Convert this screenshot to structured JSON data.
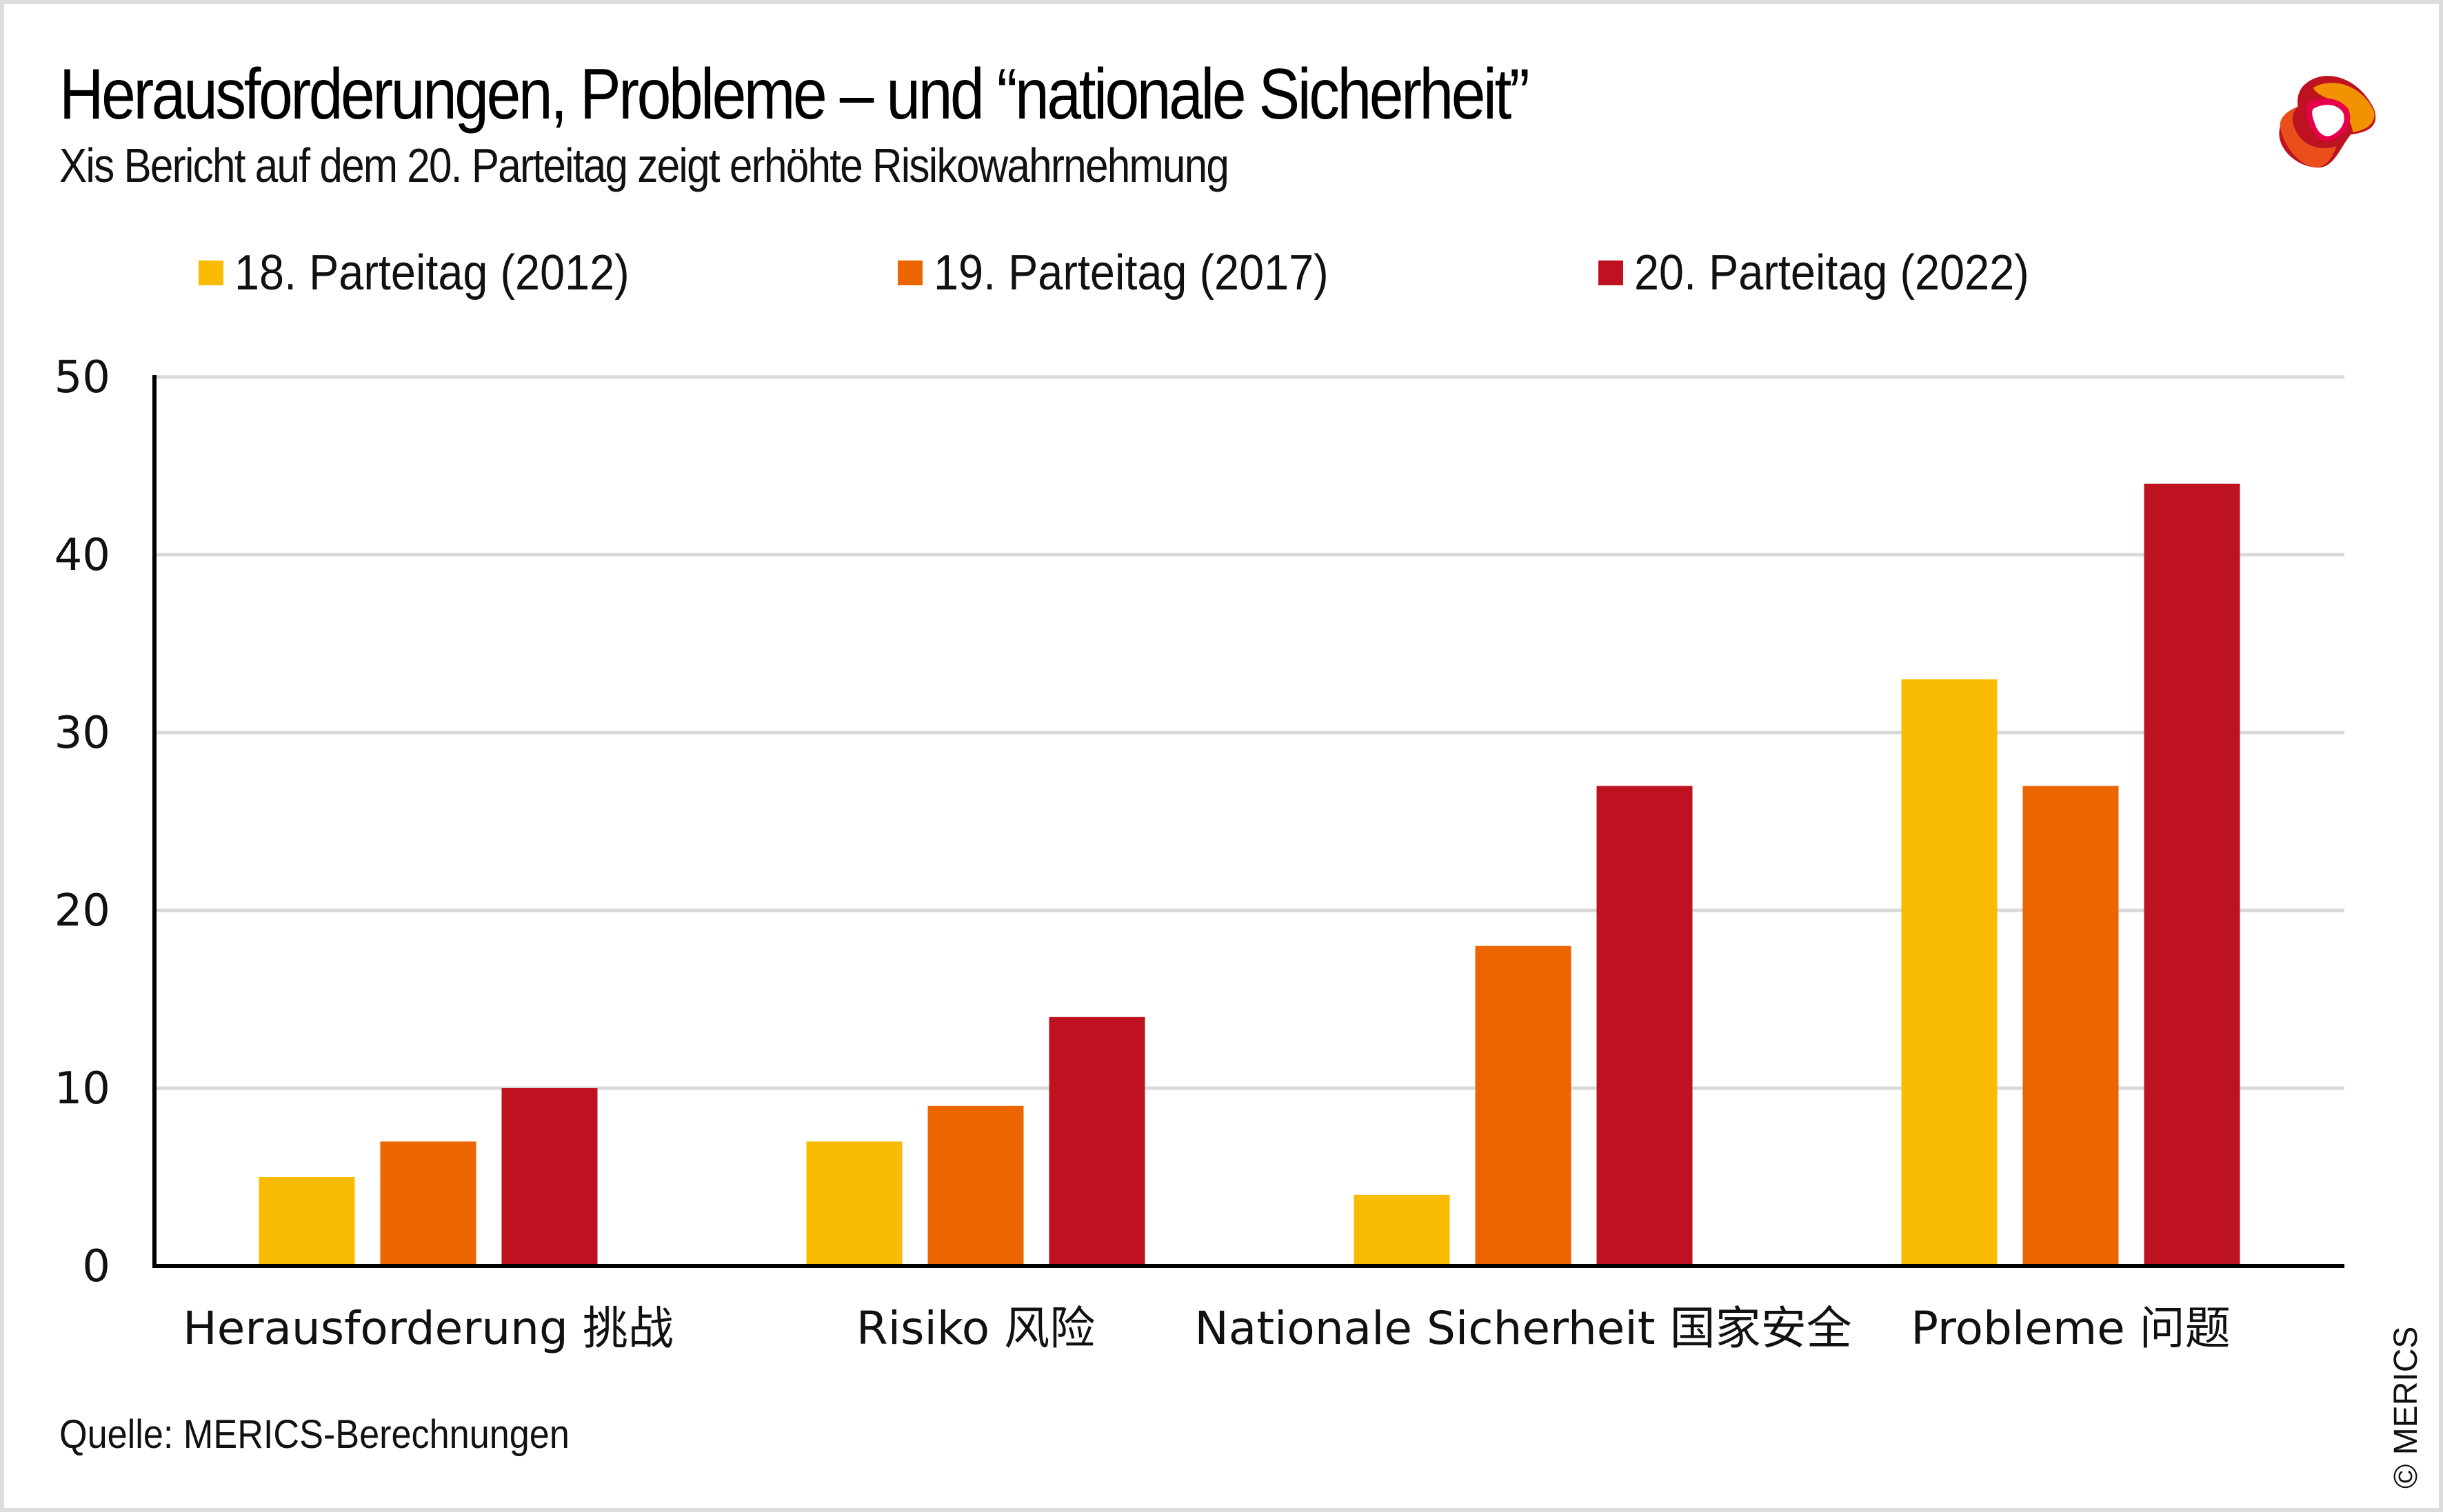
{
  "header": {
    "title": "Herausforderungen, Probleme – und “nationale Sicherheit”",
    "subtitle": "Xis Bericht auf dem 20. Parteitag zeigt erhöhte Risikowahrnehmung",
    "logo": "merics-logo-icon"
  },
  "footer": {
    "source": "Quelle: MERICS-Berechnungen",
    "copyright": "© MERICS"
  },
  "colors": {
    "series_2012": "#FABC02",
    "series_2017": "#EC6500",
    "series_2022": "#BE1220",
    "grid": "#D9D9D9",
    "axis": "#000000"
  },
  "chart_data": {
    "type": "bar",
    "title": "Herausforderungen, Probleme – und “nationale Sicherheit”",
    "subtitle": "Xis Bericht auf dem 20. Parteitag zeigt erhöhte Risikowahrnehmung",
    "xlabel": "",
    "ylabel": "",
    "ylim": [
      0,
      50
    ],
    "yticks": [
      0,
      10,
      20,
      30,
      40,
      50
    ],
    "grid": true,
    "legend_position": "top",
    "categories": [
      "Herausforderung 挑战",
      "Risiko 风险",
      "Nationale Sicherheit 国家安全",
      "Probleme 问题"
    ],
    "series": [
      {
        "name": "18. Parteitag (2012)",
        "color": "#FABC02",
        "values": [
          5,
          7,
          4,
          33
        ]
      },
      {
        "name": "19. Parteitag (2017)",
        "color": "#EC6500",
        "values": [
          7,
          9,
          18,
          27
        ]
      },
      {
        "name": "20. Parteitag (2022)",
        "color": "#BE1220",
        "values": [
          10,
          14,
          27,
          44
        ]
      }
    ]
  }
}
